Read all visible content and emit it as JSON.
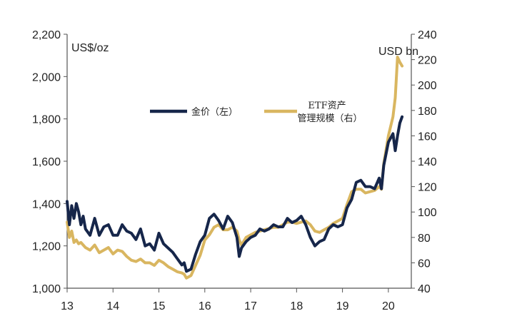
{
  "chart_data": {
    "type": "line",
    "title": "",
    "left_axis": {
      "unit": "US$/oz",
      "ylim": [
        1000,
        2200
      ],
      "ticks": [
        "1,000",
        "1,200",
        "1,400",
        "1,600",
        "1,800",
        "2,000",
        "2,200"
      ]
    },
    "right_axis": {
      "unit": "USD bn",
      "ylim": [
        40,
        240
      ],
      "ticks": [
        "40",
        "60",
        "80",
        "100",
        "120",
        "140",
        "160",
        "180",
        "200",
        "220",
        "240"
      ]
    },
    "x_axis": {
      "range": [
        13,
        20.5
      ],
      "ticks": [
        "13",
        "14",
        "15",
        "16",
        "17",
        "18",
        "19",
        "20"
      ]
    },
    "legend_placement": "top-center",
    "grid": false,
    "series": [
      {
        "name": "金价（左）",
        "axis": "left",
        "color": "#16264a",
        "x": [
          13.0,
          13.05,
          13.1,
          13.15,
          13.2,
          13.25,
          13.3,
          13.35,
          13.4,
          13.5,
          13.6,
          13.7,
          13.8,
          13.9,
          14.0,
          14.1,
          14.2,
          14.3,
          14.4,
          14.5,
          14.6,
          14.7,
          14.8,
          14.9,
          15.0,
          15.1,
          15.2,
          15.3,
          15.4,
          15.5,
          15.55,
          15.6,
          15.7,
          15.8,
          15.9,
          16.0,
          16.1,
          16.2,
          16.3,
          16.4,
          16.5,
          16.6,
          16.7,
          16.75,
          16.8,
          16.9,
          17.0,
          17.1,
          17.2,
          17.3,
          17.4,
          17.5,
          17.6,
          17.7,
          17.8,
          17.9,
          18.0,
          18.1,
          18.2,
          18.3,
          18.4,
          18.5,
          18.6,
          18.7,
          18.8,
          18.9,
          19.0,
          19.1,
          19.2,
          19.3,
          19.4,
          19.5,
          19.6,
          19.7,
          19.8,
          19.85,
          19.9,
          20.0,
          20.1,
          20.15,
          20.2,
          20.25,
          20.3
        ],
        "values": [
          1410,
          1300,
          1390,
          1330,
          1400,
          1360,
          1300,
          1340,
          1280,
          1250,
          1330,
          1250,
          1290,
          1300,
          1250,
          1250,
          1300,
          1270,
          1260,
          1230,
          1280,
          1200,
          1210,
          1180,
          1260,
          1210,
          1190,
          1170,
          1140,
          1110,
          1120,
          1080,
          1090,
          1160,
          1220,
          1250,
          1330,
          1350,
          1320,
          1280,
          1340,
          1310,
          1240,
          1150,
          1190,
          1220,
          1240,
          1250,
          1280,
          1270,
          1280,
          1300,
          1290,
          1290,
          1330,
          1310,
          1320,
          1340,
          1300,
          1240,
          1200,
          1220,
          1230,
          1280,
          1300,
          1290,
          1300,
          1380,
          1420,
          1500,
          1510,
          1480,
          1480,
          1470,
          1520,
          1470,
          1580,
          1690,
          1730,
          1650,
          1720,
          1780,
          1810
        ]
      },
      {
        "name": "ETF资产管理规模（右）",
        "axis": "right",
        "color": "#d9b660",
        "x": [
          13.0,
          13.05,
          13.1,
          13.15,
          13.2,
          13.25,
          13.3,
          13.4,
          13.5,
          13.6,
          13.7,
          13.8,
          13.9,
          14.0,
          14.1,
          14.2,
          14.3,
          14.4,
          14.5,
          14.6,
          14.7,
          14.8,
          14.9,
          15.0,
          15.1,
          15.2,
          15.3,
          15.4,
          15.5,
          15.55,
          15.6,
          15.7,
          15.8,
          15.9,
          16.0,
          16.1,
          16.2,
          16.3,
          16.4,
          16.5,
          16.6,
          16.7,
          16.75,
          16.8,
          16.9,
          17.0,
          17.1,
          17.2,
          17.3,
          17.4,
          17.5,
          17.6,
          17.7,
          17.8,
          17.9,
          18.0,
          18.1,
          18.2,
          18.3,
          18.4,
          18.5,
          18.6,
          18.7,
          18.8,
          18.9,
          19.0,
          19.1,
          19.2,
          19.3,
          19.4,
          19.5,
          19.6,
          19.7,
          19.8,
          19.85,
          19.9,
          20.0,
          20.1,
          20.15,
          20.2,
          20.25,
          20.3
        ],
        "values": [
          92,
          80,
          85,
          76,
          78,
          75,
          76,
          72,
          70,
          74,
          68,
          70,
          72,
          67,
          70,
          69,
          65,
          62,
          61,
          63,
          60,
          60,
          58,
          62,
          60,
          57,
          55,
          53,
          52,
          51,
          48,
          50,
          58,
          66,
          78,
          82,
          88,
          90,
          86,
          86,
          88,
          85,
          78,
          74,
          80,
          82,
          84,
          85,
          86,
          87,
          88,
          88,
          90,
          92,
          92,
          91,
          92,
          93,
          90,
          85,
          84,
          86,
          88,
          91,
          93,
          95,
          106,
          116,
          118,
          118,
          115,
          116,
          117,
          120,
          118,
          138,
          160,
          175,
          190,
          222,
          218,
          215
        ]
      }
    ]
  }
}
